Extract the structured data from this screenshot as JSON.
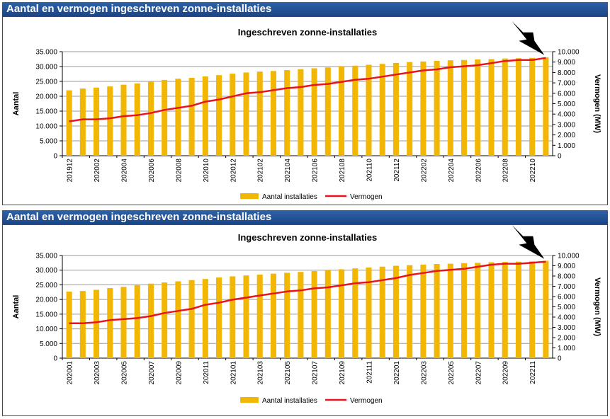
{
  "colors": {
    "bar": "#f2b705",
    "line": "#e8141b",
    "header": "#1f4c8f"
  },
  "chart_data": [
    {
      "type": "bar",
      "header": "Aantal en vermogen ingeschreven zonne-installaties",
      "title": "Ingeschreven zonne-installaties",
      "ylabel": "Aantal",
      "y2label": "Vermogen (MW)",
      "ylim": [
        0,
        35000
      ],
      "y2lim": [
        0,
        10000
      ],
      "yticks": [
        "0",
        "5.000",
        "10.000",
        "15.000",
        "20.000",
        "25.000",
        "30.000",
        "35.000"
      ],
      "y2ticks": [
        "0",
        "1.000",
        "2.000",
        "3.000",
        "4.000",
        "5.000",
        "6.000",
        "7.000",
        "8.000",
        "9.000",
        "10.000"
      ],
      "categories": [
        "201912",
        "202001",
        "202002",
        "202003",
        "202004",
        "202005",
        "202006",
        "202007",
        "202008",
        "202009",
        "202010",
        "202011",
        "202012",
        "202101",
        "202102",
        "202103",
        "202104",
        "202105",
        "202106",
        "202107",
        "202108",
        "202109",
        "202110",
        "202111",
        "202112",
        "202201",
        "202202",
        "202203",
        "202204",
        "202205",
        "202206",
        "202207",
        "202208",
        "202209",
        "202210",
        "202211"
      ],
      "xticklabels": [
        "201912",
        "202002",
        "202004",
        "202006",
        "202008",
        "202010",
        "202012",
        "202102",
        "202104",
        "202106",
        "202108",
        "202110",
        "202112",
        "202202",
        "202204",
        "202206",
        "202208",
        "202210"
      ],
      "series": [
        {
          "name": "Aantal installaties",
          "kind": "bar",
          "axis": "left",
          "values": [
            22000,
            22600,
            22900,
            23300,
            23900,
            24300,
            25000,
            25500,
            25900,
            26200,
            26700,
            27100,
            27600,
            28000,
            28300,
            28500,
            28800,
            29100,
            29400,
            29700,
            30000,
            30300,
            30600,
            30900,
            31200,
            31500,
            31700,
            31900,
            32100,
            32200,
            32400,
            32500,
            32700,
            32800,
            32900,
            33100
          ]
        },
        {
          "name": "Vermogen",
          "kind": "line",
          "axis": "right",
          "values": [
            3300,
            3500,
            3500,
            3600,
            3800,
            3900,
            4100,
            4400,
            4600,
            4800,
            5200,
            5400,
            5700,
            6000,
            6100,
            6300,
            6500,
            6600,
            6800,
            6900,
            7100,
            7300,
            7400,
            7600,
            7800,
            8000,
            8200,
            8300,
            8500,
            8600,
            8700,
            8900,
            9100,
            9200,
            9200,
            9400
          ]
        }
      ],
      "legend": "bottom",
      "annotation": "arrow pointing at last point of Vermogen line"
    },
    {
      "type": "bar",
      "header": "Aantal en vermogen ingeschreven zonne-installaties",
      "title": "Ingeschreven zonne-installaties",
      "ylabel": "Aantal",
      "y2label": "Vermogen (MW)",
      "ylim": [
        0,
        35000
      ],
      "y2lim": [
        0,
        10000
      ],
      "yticks": [
        "0",
        "5.000",
        "10.000",
        "15.000",
        "20.000",
        "25.000",
        "30.000",
        "35.000"
      ],
      "y2ticks": [
        "0",
        "1.000",
        "2.000",
        "3.000",
        "4.000",
        "5.000",
        "6.000",
        "7.000",
        "8.000",
        "9.000",
        "10.000"
      ],
      "categories": [
        "202001",
        "202002",
        "202003",
        "202004",
        "202005",
        "202006",
        "202007",
        "202008",
        "202009",
        "202010",
        "202011",
        "202012",
        "202101",
        "202102",
        "202103",
        "202104",
        "202105",
        "202106",
        "202107",
        "202108",
        "202109",
        "202110",
        "202111",
        "202112",
        "202201",
        "202202",
        "202203",
        "202204",
        "202205",
        "202206",
        "202207",
        "202208",
        "202209",
        "202210",
        "202211",
        "202212"
      ],
      "xticklabels": [
        "202001",
        "202003",
        "202005",
        "202007",
        "202009",
        "202011",
        "202101",
        "202103",
        "202105",
        "202107",
        "202109",
        "202111",
        "202201",
        "202203",
        "202205",
        "202207",
        "202209",
        "202211"
      ],
      "series": [
        {
          "name": "Aantal installaties",
          "kind": "bar",
          "axis": "left",
          "values": [
            22700,
            22900,
            23300,
            23900,
            24300,
            24900,
            25400,
            25800,
            26200,
            26600,
            27000,
            27500,
            27900,
            28200,
            28500,
            28800,
            29100,
            29400,
            29700,
            30000,
            30300,
            30600,
            30900,
            31200,
            31500,
            31700,
            31900,
            32100,
            32200,
            32400,
            32500,
            32700,
            32800,
            32900,
            33000,
            33200
          ]
        },
        {
          "name": "Vermogen",
          "kind": "line",
          "axis": "right",
          "values": [
            3400,
            3400,
            3500,
            3700,
            3800,
            3900,
            4100,
            4400,
            4600,
            4800,
            5200,
            5400,
            5700,
            5900,
            6100,
            6300,
            6500,
            6600,
            6800,
            6900,
            7100,
            7300,
            7400,
            7600,
            7800,
            8100,
            8300,
            8500,
            8600,
            8700,
            8900,
            9100,
            9200,
            9200,
            9300,
            9400
          ]
        }
      ],
      "legend": "bottom",
      "annotation": "arrow pointing at last point of Vermogen line"
    }
  ]
}
